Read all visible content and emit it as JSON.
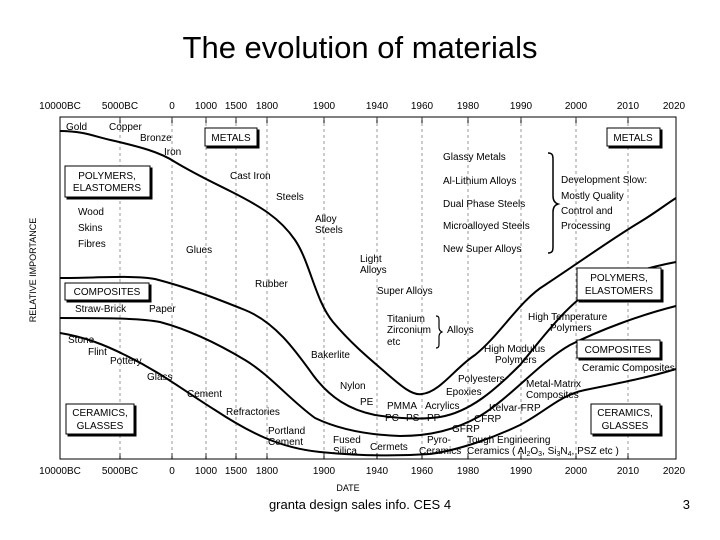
{
  "title": "The evolution of materials",
  "footer": "granta design sales info.  CES 4",
  "page_number": "3",
  "axes": {
    "y_label": "RELATIVE IMPORTANCE",
    "x_label": "DATE",
    "ticks": [
      "10000BC",
      "5000BC",
      "0",
      "1000",
      "1500",
      "1800",
      "1900",
      "1940",
      "1960",
      "1980",
      "1990",
      "2000",
      "2010",
      "2020"
    ]
  },
  "boxes": {
    "metals_left": "METALS",
    "metals_right": "METALS",
    "polymers_left": [
      "POLYMERS,",
      "ELASTOMERS"
    ],
    "polymers_right": [
      "POLYMERS,",
      "ELASTOMERS"
    ],
    "composites_left": "COMPOSITES",
    "composites_right": "COMPOSITES",
    "ceramics_left": [
      "CERAMICS,",
      "GLASSES"
    ],
    "ceramics_right": [
      "CERAMICS,",
      "GLASSES"
    ]
  },
  "labels": {
    "gold": "Gold",
    "copper": "Copper",
    "bronze": "Bronze",
    "iron": "Iron",
    "cast_iron": "Cast Iron",
    "steels": "Steels",
    "alloy_steels": [
      "Alloy",
      "Steels"
    ],
    "light_alloys": [
      "Light",
      "Alloys"
    ],
    "super_alloys": "Super Alloys",
    "titanium_group": [
      "Titanium",
      "Zirconium",
      "etc"
    ],
    "alloys": "Alloys",
    "wood": "Wood",
    "skins": "Skins",
    "fibres": "Fibres",
    "glues": "Glues",
    "rubber": "Rubber",
    "straw_brick": "Straw-Brick",
    "paper": "Paper",
    "stone": "Stone",
    "flint": "Flint",
    "pottery": "Pottery",
    "glass": "Glass",
    "cement": "Cement",
    "refractories": "Refractories",
    "portland_cement": [
      "Portland",
      "Cement"
    ],
    "bakerlite": "Bakerlite",
    "nylon": "Nylon",
    "pe": "PE",
    "pmma": "PMMA",
    "acrylics": "Acrylics",
    "pc": "PC",
    "ps": "PS",
    "pp": "PP",
    "fused_silica": [
      "Fused",
      "Silica"
    ],
    "cermets": "Cermets",
    "pyro_ceramics": [
      "Pyro-",
      "Ceramics"
    ],
    "tough_engineering": "Tough Engineering",
    "ceramics_formula_pre": "Ceramics ( Al",
    "ceramics_formula_a": "2",
    "ceramics_formula_b": "O",
    "ceramics_formula_c": "3",
    "ceramics_formula_d": ", Si",
    "ceramics_formula_e": "3",
    "ceramics_formula_f": "N",
    "ceramics_formula_g": "4",
    "ceramics_formula_h": ", PSZ etc )",
    "polyesters": "Polyesters",
    "epoxies": "Epoxies",
    "kelvar_frp": "Kelvar-FRP",
    "cfrp": "CFRP",
    "gfrp": "GFRP",
    "metal_matrix": [
      "Metal-Matrix",
      "Composites"
    ],
    "ceramic_composites": "Ceramic Composites",
    "high_modulus": [
      "High Modulus",
      "Polymers"
    ],
    "high_temp": [
      "High Temperature",
      "Polymers"
    ],
    "glassy_metals": "Glassy Metals",
    "al_li": "Al-Lithium Alloys",
    "dual_phase": "Dual Phase Steels",
    "microalloyed": "Microalloyed Steels",
    "new_super": "New Super Alloys",
    "dev_slow": [
      "Development Slow:",
      "Mostly Quality",
      "Control and",
      "Processing"
    ]
  }
}
